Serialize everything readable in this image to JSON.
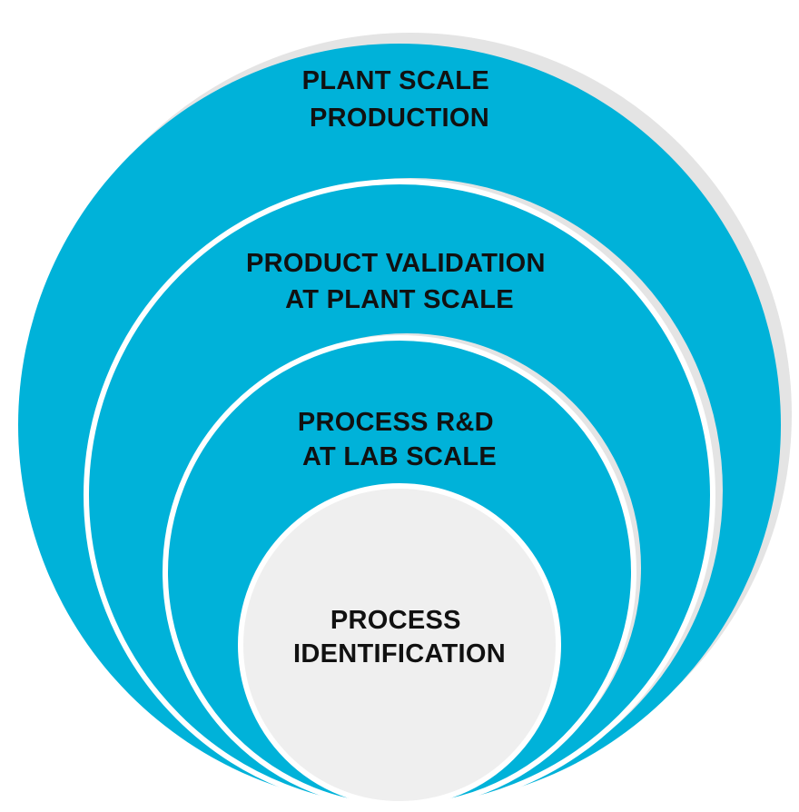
{
  "diagram": {
    "type": "nested-circles",
    "colors": {
      "ring_fill": "#00b2d9",
      "ring_shadow": "#e4e4e4",
      "ring_outline": "#ffffff",
      "center_fill": "#efefef",
      "text": "#111111"
    },
    "layers": [
      {
        "level": 1,
        "line1": "PLANT SCALE",
        "line2": "PRODUCTION"
      },
      {
        "level": 2,
        "line1": "PRODUCT VALIDATION",
        "line2": "AT PLANT SCALE"
      },
      {
        "level": 3,
        "line1": "PROCESS R&D",
        "line2": "AT LAB SCALE"
      },
      {
        "level": 4,
        "line1": "PROCESS",
        "line2": "IDENTIFICATION"
      }
    ]
  }
}
